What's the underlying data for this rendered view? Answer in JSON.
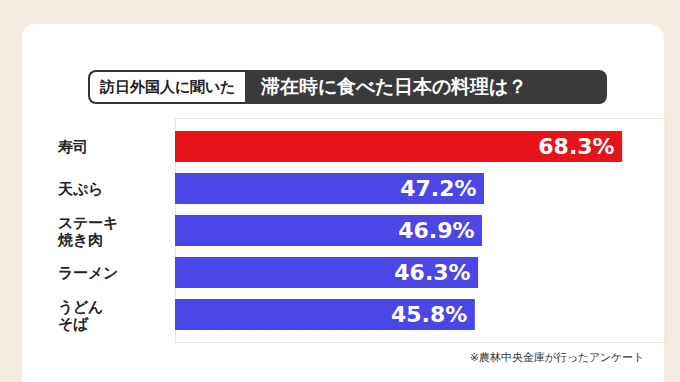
{
  "chart_data": {
    "type": "bar",
    "orientation": "horizontal",
    "title": "滞在時に食べた日本の料理は？",
    "subtitle": "訪日外国人に聞いた",
    "caption": "※農林中央金庫が行ったアンケート",
    "categories": [
      "寿司",
      "天ぷら",
      "ステーキ\n焼き肉",
      "ラーメン",
      "うどん\nそば"
    ],
    "values": [
      68.3,
      47.2,
      46.9,
      46.3,
      45.8
    ],
    "value_labels": [
      "68.3%",
      "47.2%",
      "46.9%",
      "46.3%",
      "45.8%"
    ],
    "colors": [
      "#e8141c",
      "#4a47e6",
      "#4a47e6",
      "#4a47e6",
      "#4a47e6"
    ],
    "xlim": [
      0,
      75
    ],
    "xticks": [],
    "grid": false,
    "data_labels": true,
    "tick_labels": "y"
  }
}
